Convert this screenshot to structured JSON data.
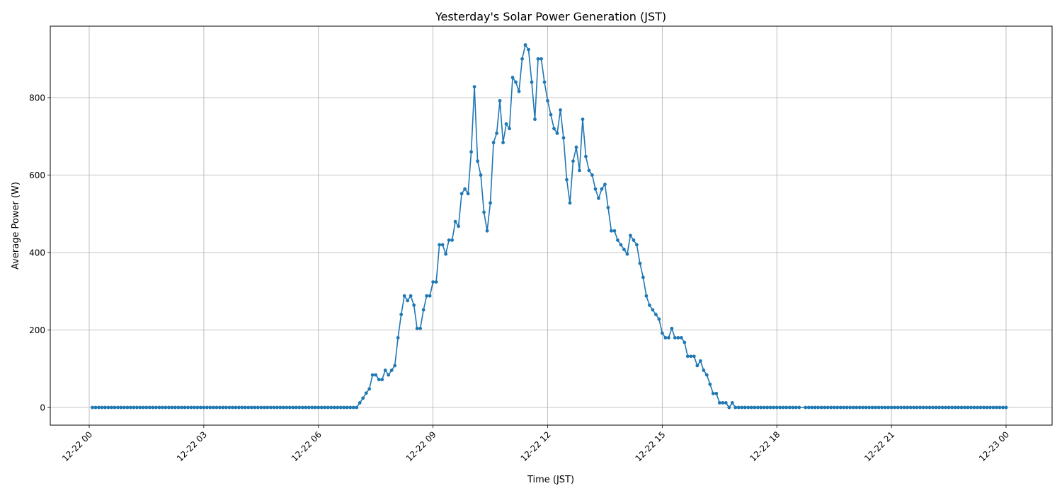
{
  "chart_data": {
    "type": "line",
    "title": "Yesterday's Solar Power Generation (JST)",
    "xlabel": "Time (JST)",
    "ylabel": "Average Power (W)",
    "x_tick_labels": [
      "12-22 00",
      "12-22 03",
      "12-22 06",
      "12-22 09",
      "12-22 12",
      "12-22 15",
      "12-22 18",
      "12-22 21",
      "12-23 00"
    ],
    "x_tick_hours": [
      0,
      3,
      6,
      9,
      12,
      15,
      18,
      21,
      24
    ],
    "y_ticks": [
      0,
      200,
      400,
      600,
      800
    ],
    "ylim": [
      -46,
      984
    ],
    "xlim_hours": [
      -1.02,
      25.2
    ],
    "grid": true,
    "legend": null,
    "marker": "circle",
    "series_color": "#1f77b4",
    "interval_minutes": 5,
    "missing_times": [
      "18:40"
    ],
    "series": [
      {
        "name": "Average Power (W)",
        "points": [
          [
            "00:05",
            0
          ],
          [
            "00:10",
            0
          ],
          [
            "00:15",
            0
          ],
          [
            "00:20",
            0
          ],
          [
            "00:25",
            0
          ],
          [
            "00:30",
            0
          ],
          [
            "00:35",
            0
          ],
          [
            "00:40",
            0
          ],
          [
            "00:45",
            0
          ],
          [
            "00:50",
            0
          ],
          [
            "00:55",
            0
          ],
          [
            "01:00",
            0
          ],
          [
            "01:05",
            0
          ],
          [
            "01:10",
            0
          ],
          [
            "01:15",
            0
          ],
          [
            "01:20",
            0
          ],
          [
            "01:25",
            0
          ],
          [
            "01:30",
            0
          ],
          [
            "01:35",
            0
          ],
          [
            "01:40",
            0
          ],
          [
            "01:45",
            0
          ],
          [
            "01:50",
            0
          ],
          [
            "01:55",
            0
          ],
          [
            "02:00",
            0
          ],
          [
            "02:05",
            0
          ],
          [
            "02:10",
            0
          ],
          [
            "02:15",
            0
          ],
          [
            "02:20",
            0
          ],
          [
            "02:25",
            0
          ],
          [
            "02:30",
            0
          ],
          [
            "02:35",
            0
          ],
          [
            "02:40",
            0
          ],
          [
            "02:45",
            0
          ],
          [
            "02:50",
            0
          ],
          [
            "02:55",
            0
          ],
          [
            "03:00",
            0
          ],
          [
            "03:05",
            0
          ],
          [
            "03:10",
            0
          ],
          [
            "03:15",
            0
          ],
          [
            "03:20",
            0
          ],
          [
            "03:25",
            0
          ],
          [
            "03:30",
            0
          ],
          [
            "03:35",
            0
          ],
          [
            "03:40",
            0
          ],
          [
            "03:45",
            0
          ],
          [
            "03:50",
            0
          ],
          [
            "03:55",
            0
          ],
          [
            "04:00",
            0
          ],
          [
            "04:05",
            0
          ],
          [
            "04:10",
            0
          ],
          [
            "04:15",
            0
          ],
          [
            "04:20",
            0
          ],
          [
            "04:25",
            0
          ],
          [
            "04:30",
            0
          ],
          [
            "04:35",
            0
          ],
          [
            "04:40",
            0
          ],
          [
            "04:45",
            0
          ],
          [
            "04:50",
            0
          ],
          [
            "04:55",
            0
          ],
          [
            "05:00",
            0
          ],
          [
            "05:05",
            0
          ],
          [
            "05:10",
            0
          ],
          [
            "05:15",
            0
          ],
          [
            "05:20",
            0
          ],
          [
            "05:25",
            0
          ],
          [
            "05:30",
            0
          ],
          [
            "05:35",
            0
          ],
          [
            "05:40",
            0
          ],
          [
            "05:45",
            0
          ],
          [
            "05:50",
            0
          ],
          [
            "05:55",
            0
          ],
          [
            "06:00",
            0
          ],
          [
            "06:05",
            0
          ],
          [
            "06:10",
            0
          ],
          [
            "06:15",
            0
          ],
          [
            "06:20",
            0
          ],
          [
            "06:25",
            0
          ],
          [
            "06:30",
            0
          ],
          [
            "06:35",
            0
          ],
          [
            "06:40",
            0
          ],
          [
            "06:45",
            0
          ],
          [
            "06:50",
            0
          ],
          [
            "06:55",
            0
          ],
          [
            "07:00",
            0
          ],
          [
            "07:05",
            12
          ],
          [
            "07:10",
            24
          ],
          [
            "07:15",
            37
          ],
          [
            "07:20",
            48
          ],
          [
            "07:25",
            84
          ],
          [
            "07:30",
            84
          ],
          [
            "07:35",
            72
          ],
          [
            "07:40",
            72
          ],
          [
            "07:45",
            96
          ],
          [
            "07:50",
            84
          ],
          [
            "07:55",
            96
          ],
          [
            "08:00",
            108
          ],
          [
            "08:05",
            180
          ],
          [
            "08:10",
            240
          ],
          [
            "08:15",
            288
          ],
          [
            "08:20",
            276
          ],
          [
            "08:25",
            288
          ],
          [
            "08:30",
            264
          ],
          [
            "08:35",
            204
          ],
          [
            "08:40",
            204
          ],
          [
            "08:45",
            252
          ],
          [
            "08:50",
            288
          ],
          [
            "08:55",
            288
          ],
          [
            "09:00",
            324
          ],
          [
            "09:05",
            324
          ],
          [
            "09:10",
            420
          ],
          [
            "09:15",
            420
          ],
          [
            "09:20",
            396
          ],
          [
            "09:25",
            432
          ],
          [
            "09:30",
            432
          ],
          [
            "09:35",
            480
          ],
          [
            "09:40",
            468
          ],
          [
            "09:45",
            552
          ],
          [
            "09:50",
            564
          ],
          [
            "09:55",
            552
          ],
          [
            "10:00",
            660
          ],
          [
            "10:05",
            828
          ],
          [
            "10:10",
            636
          ],
          [
            "10:15",
            600
          ],
          [
            "10:20",
            504
          ],
          [
            "10:25",
            456
          ],
          [
            "10:30",
            528
          ],
          [
            "10:35",
            684
          ],
          [
            "10:40",
            708
          ],
          [
            "10:45",
            792
          ],
          [
            "10:50",
            684
          ],
          [
            "10:55",
            732
          ],
          [
            "11:00",
            720
          ],
          [
            "11:05",
            852
          ],
          [
            "11:10",
            840
          ],
          [
            "11:15",
            816
          ],
          [
            "11:20",
            900
          ],
          [
            "11:25",
            936
          ],
          [
            "11:30",
            924
          ],
          [
            "11:35",
            840
          ],
          [
            "11:40",
            744
          ],
          [
            "11:45",
            900
          ],
          [
            "11:50",
            900
          ],
          [
            "11:55",
            840
          ],
          [
            "12:00",
            792
          ],
          [
            "12:05",
            756
          ],
          [
            "12:10",
            720
          ],
          [
            "12:15",
            708
          ],
          [
            "12:20",
            768
          ],
          [
            "12:25",
            696
          ],
          [
            "12:30",
            588
          ],
          [
            "12:35",
            528
          ],
          [
            "12:40",
            636
          ],
          [
            "12:45",
            672
          ],
          [
            "12:50",
            612
          ],
          [
            "12:55",
            744
          ],
          [
            "13:00",
            648
          ],
          [
            "13:05",
            612
          ],
          [
            "13:10",
            600
          ],
          [
            "13:15",
            564
          ],
          [
            "13:20",
            540
          ],
          [
            "13:25",
            564
          ],
          [
            "13:30",
            576
          ],
          [
            "13:35",
            516
          ],
          [
            "13:40",
            456
          ],
          [
            "13:45",
            456
          ],
          [
            "13:50",
            432
          ],
          [
            "13:55",
            420
          ],
          [
            "14:00",
            408
          ],
          [
            "14:05",
            396
          ],
          [
            "14:10",
            444
          ],
          [
            "14:15",
            432
          ],
          [
            "14:20",
            420
          ],
          [
            "14:25",
            372
          ],
          [
            "14:30",
            336
          ],
          [
            "14:35",
            288
          ],
          [
            "14:40",
            264
          ],
          [
            "14:45",
            252
          ],
          [
            "14:50",
            240
          ],
          [
            "14:55",
            228
          ],
          [
            "15:00",
            192
          ],
          [
            "15:05",
            180
          ],
          [
            "15:10",
            180
          ],
          [
            "15:15",
            204
          ],
          [
            "15:20",
            180
          ],
          [
            "15:25",
            180
          ],
          [
            "15:30",
            180
          ],
          [
            "15:35",
            168
          ],
          [
            "15:40",
            132
          ],
          [
            "15:45",
            132
          ],
          [
            "15:50",
            132
          ],
          [
            "15:55",
            108
          ],
          [
            "16:00",
            120
          ],
          [
            "16:05",
            96
          ],
          [
            "16:10",
            84
          ],
          [
            "16:15",
            60
          ],
          [
            "16:20",
            36
          ],
          [
            "16:25",
            36
          ],
          [
            "16:30",
            12
          ],
          [
            "16:35",
            12
          ],
          [
            "16:40",
            12
          ],
          [
            "16:45",
            0
          ],
          [
            "16:50",
            12
          ],
          [
            "16:55",
            0
          ],
          [
            "17:00",
            0
          ],
          [
            "17:05",
            0
          ],
          [
            "17:10",
            0
          ],
          [
            "17:15",
            0
          ],
          [
            "17:20",
            0
          ],
          [
            "17:25",
            0
          ],
          [
            "17:30",
            0
          ],
          [
            "17:35",
            0
          ],
          [
            "17:40",
            0
          ],
          [
            "17:45",
            0
          ],
          [
            "17:50",
            0
          ],
          [
            "17:55",
            0
          ],
          [
            "18:00",
            0
          ],
          [
            "18:05",
            0
          ],
          [
            "18:10",
            0
          ],
          [
            "18:15",
            0
          ],
          [
            "18:20",
            0
          ],
          [
            "18:25",
            0
          ],
          [
            "18:30",
            0
          ],
          [
            "18:35",
            0
          ],
          [
            "18:45",
            0
          ],
          [
            "18:50",
            0
          ],
          [
            "18:55",
            0
          ],
          [
            "19:00",
            0
          ],
          [
            "19:05",
            0
          ],
          [
            "19:10",
            0
          ],
          [
            "19:15",
            0
          ],
          [
            "19:20",
            0
          ],
          [
            "19:25",
            0
          ],
          [
            "19:30",
            0
          ],
          [
            "19:35",
            0
          ],
          [
            "19:40",
            0
          ],
          [
            "19:45",
            0
          ],
          [
            "19:50",
            0
          ],
          [
            "19:55",
            0
          ],
          [
            "20:00",
            0
          ],
          [
            "20:05",
            0
          ],
          [
            "20:10",
            0
          ],
          [
            "20:15",
            0
          ],
          [
            "20:20",
            0
          ],
          [
            "20:25",
            0
          ],
          [
            "20:30",
            0
          ],
          [
            "20:35",
            0
          ],
          [
            "20:40",
            0
          ],
          [
            "20:45",
            0
          ],
          [
            "20:50",
            0
          ],
          [
            "20:55",
            0
          ],
          [
            "21:00",
            0
          ],
          [
            "21:05",
            0
          ],
          [
            "21:10",
            0
          ],
          [
            "21:15",
            0
          ],
          [
            "21:20",
            0
          ],
          [
            "21:25",
            0
          ],
          [
            "21:30",
            0
          ],
          [
            "21:35",
            0
          ],
          [
            "21:40",
            0
          ],
          [
            "21:45",
            0
          ],
          [
            "21:50",
            0
          ],
          [
            "21:55",
            0
          ],
          [
            "22:00",
            0
          ],
          [
            "22:05",
            0
          ],
          [
            "22:10",
            0
          ],
          [
            "22:15",
            0
          ],
          [
            "22:20",
            0
          ],
          [
            "22:25",
            0
          ],
          [
            "22:30",
            0
          ],
          [
            "22:35",
            0
          ],
          [
            "22:40",
            0
          ],
          [
            "22:45",
            0
          ],
          [
            "22:50",
            0
          ],
          [
            "22:55",
            0
          ],
          [
            "23:00",
            0
          ],
          [
            "23:05",
            0
          ],
          [
            "23:10",
            0
          ],
          [
            "23:15",
            0
          ],
          [
            "23:20",
            0
          ],
          [
            "23:25",
            0
          ],
          [
            "23:30",
            0
          ],
          [
            "23:35",
            0
          ],
          [
            "23:40",
            0
          ],
          [
            "23:45",
            0
          ],
          [
            "23:50",
            0
          ],
          [
            "23:55",
            0
          ],
          [
            "24:00",
            0
          ]
        ]
      }
    ]
  }
}
